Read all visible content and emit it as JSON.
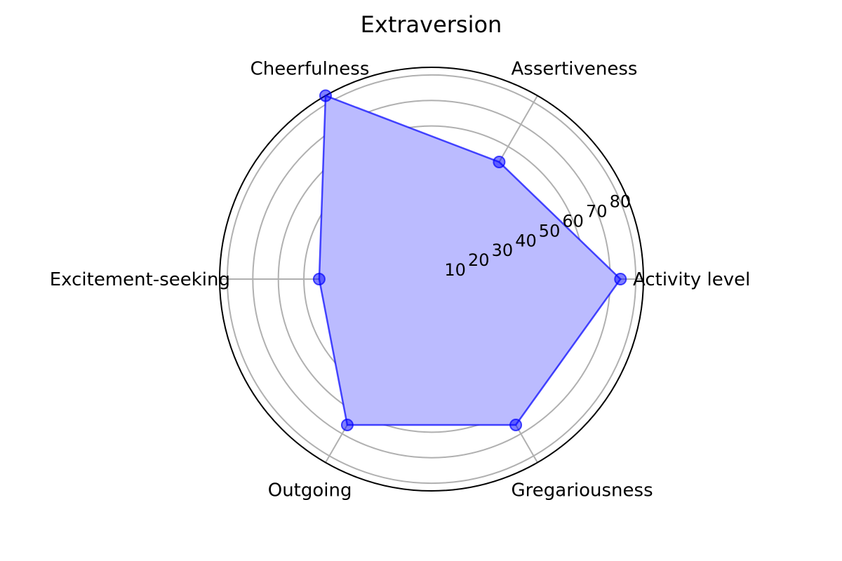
{
  "chart_data": {
    "type": "radar",
    "title": "Extraversion",
    "categories": [
      "Activity level",
      "Assertiveness",
      "Cheerfulness",
      "Excitement-seeking",
      "Outgoing",
      "Gregariousness"
    ],
    "series": [
      {
        "values": [
          74,
          53,
          83,
          44,
          66,
          66
        ]
      }
    ],
    "radial_ticks": [
      10,
      20,
      30,
      40,
      50,
      60,
      70,
      80
    ],
    "rlim": [
      0,
      83
    ],
    "grid": true,
    "colors": {
      "line": "#0000ff",
      "fill": "#bbbbff",
      "grid": "#b0b0b0"
    }
  }
}
